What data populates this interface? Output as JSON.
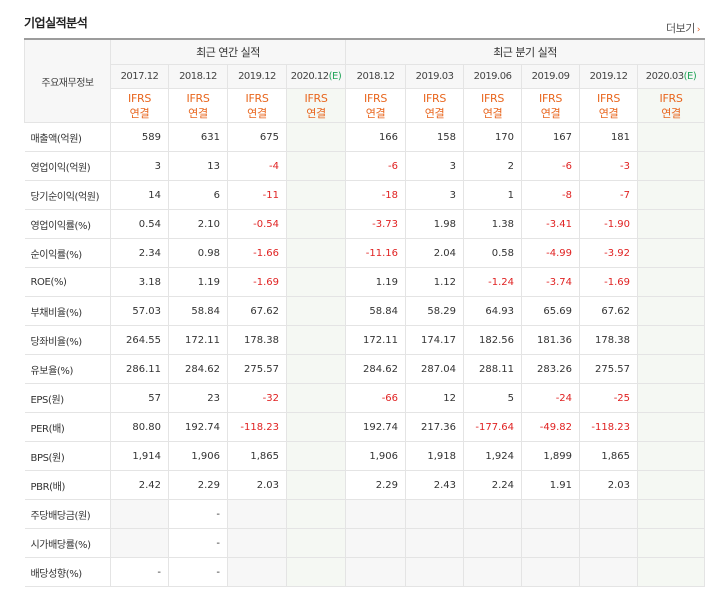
{
  "section": {
    "title": "기업실적분석",
    "more_label": "더보기",
    "more_arrow": "›"
  },
  "table": {
    "row_header": "주요재무정보",
    "group_annual": "최근 연간 실적",
    "group_quarter": "최근 분기 실적",
    "periods": [
      "2017.12",
      "2018.12",
      "2019.12",
      "2020.12",
      "2018.12",
      "2019.03",
      "2019.06",
      "2019.09",
      "2019.12",
      "2020.03"
    ],
    "estimate_suffix": "(E)",
    "ifrs": [
      "IFRS",
      "연결"
    ],
    "rows": [
      {
        "label": "매출액(억원)",
        "values": [
          "589",
          "631",
          "675",
          "",
          "166",
          "158",
          "170",
          "167",
          "181",
          ""
        ]
      },
      {
        "label": "영업이익(억원)",
        "values": [
          "3",
          "13",
          "-4",
          "",
          "-6",
          "3",
          "2",
          "-6",
          "-3",
          ""
        ]
      },
      {
        "label": "당기순이익(억원)",
        "values": [
          "14",
          "6",
          "-11",
          "",
          "-18",
          "3",
          "1",
          "-8",
          "-7",
          ""
        ]
      },
      {
        "label": "영업이익률(%)",
        "values": [
          "0.54",
          "2.10",
          "-0.54",
          "",
          "-3.73",
          "1.98",
          "1.38",
          "-3.41",
          "-1.90",
          ""
        ]
      },
      {
        "label": "순이익률(%)",
        "values": [
          "2.34",
          "0.98",
          "-1.66",
          "",
          "-11.16",
          "2.04",
          "0.58",
          "-4.99",
          "-3.92",
          ""
        ]
      },
      {
        "label": "ROE(%)",
        "values": [
          "3.18",
          "1.19",
          "-1.69",
          "",
          "1.19",
          "1.12",
          "-1.24",
          "-3.74",
          "-1.69",
          ""
        ]
      },
      {
        "label": "부채비율(%)",
        "values": [
          "57.03",
          "58.84",
          "67.62",
          "",
          "58.84",
          "58.29",
          "64.93",
          "65.69",
          "67.62",
          ""
        ]
      },
      {
        "label": "당좌비율(%)",
        "values": [
          "264.55",
          "172.11",
          "178.38",
          "",
          "172.11",
          "174.17",
          "182.56",
          "181.36",
          "178.38",
          ""
        ]
      },
      {
        "label": "유보율(%)",
        "values": [
          "286.11",
          "284.62",
          "275.57",
          "",
          "284.62",
          "287.04",
          "288.11",
          "283.26",
          "275.57",
          ""
        ]
      },
      {
        "label": "EPS(원)",
        "values": [
          "57",
          "23",
          "-32",
          "",
          "-66",
          "12",
          "5",
          "-24",
          "-25",
          ""
        ]
      },
      {
        "label": "PER(배)",
        "values": [
          "80.80",
          "192.74",
          "-118.23",
          "",
          "192.74",
          "217.36",
          "-177.64",
          "-49.82",
          "-118.23",
          ""
        ]
      },
      {
        "label": "BPS(원)",
        "values": [
          "1,914",
          "1,906",
          "1,865",
          "",
          "1,906",
          "1,918",
          "1,924",
          "1,899",
          "1,865",
          ""
        ]
      },
      {
        "label": "PBR(배)",
        "values": [
          "2.42",
          "2.29",
          "2.03",
          "",
          "2.29",
          "2.43",
          "2.24",
          "1.91",
          "2.03",
          ""
        ]
      },
      {
        "label": "주당배당금(원)",
        "values": [
          "",
          "-",
          "",
          "",
          "",
          "",
          "",
          "",
          "",
          ""
        ]
      },
      {
        "label": "시가배당률(%)",
        "values": [
          "",
          "-",
          "",
          "",
          "",
          "",
          "",
          "",
          "",
          ""
        ]
      },
      {
        "label": "배당성향(%)",
        "values": [
          "-",
          "-",
          "",
          "",
          "",
          "",
          "",
          "",
          "",
          ""
        ]
      }
    ]
  },
  "colors": {
    "negative": "#e02222",
    "ifrs": "#e8661e",
    "estimate": "#23a55a"
  }
}
